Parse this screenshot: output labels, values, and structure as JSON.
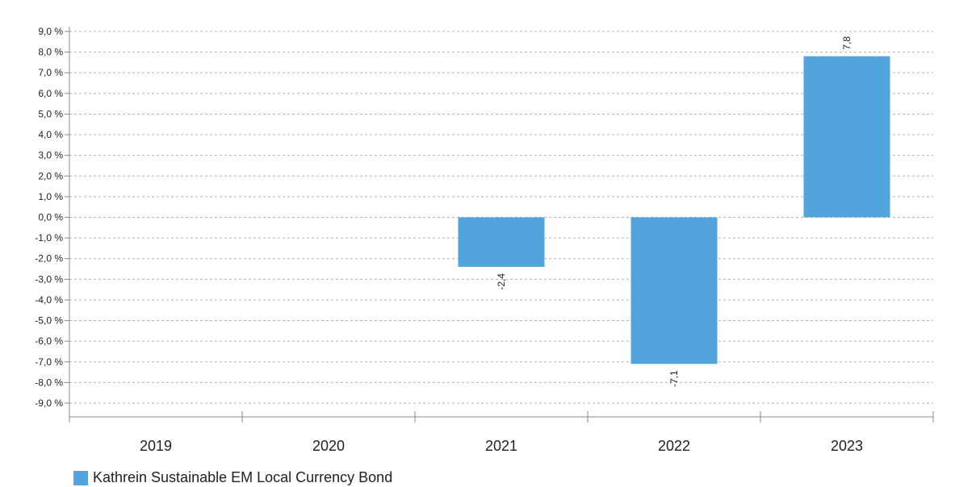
{
  "chart_data": {
    "type": "bar",
    "categories": [
      "2019",
      "2020",
      "2021",
      "2022",
      "2023"
    ],
    "series": [
      {
        "name": "Kathrein Sustainable EM Local Currency Bond",
        "values": [
          null,
          null,
          -2.4,
          -7.1,
          7.8
        ],
        "value_labels": [
          "",
          "",
          "-2,4",
          "-7,1",
          "7,8"
        ]
      }
    ],
    "yticks": [
      {
        "value": 9,
        "label": "9,0 %"
      },
      {
        "value": 8,
        "label": "8,0 %"
      },
      {
        "value": 7,
        "label": "7,0 %"
      },
      {
        "value": 6,
        "label": "6,0 %"
      },
      {
        "value": 5,
        "label": "5,0 %"
      },
      {
        "value": 4,
        "label": "4,0 %"
      },
      {
        "value": 3,
        "label": "3,0 %"
      },
      {
        "value": 2,
        "label": "2,0 %"
      },
      {
        "value": 1,
        "label": "1,0 %"
      },
      {
        "value": 0,
        "label": "0,0 %"
      },
      {
        "value": -1,
        "label": "-1,0 %"
      },
      {
        "value": -2,
        "label": "-2,0 %"
      },
      {
        "value": -3,
        "label": "-3,0 %"
      },
      {
        "value": -4,
        "label": "-4,0 %"
      },
      {
        "value": -5,
        "label": "-5,0 %"
      },
      {
        "value": -6,
        "label": "-6,0 %"
      },
      {
        "value": -7,
        "label": "-7,0 %"
      },
      {
        "value": -8,
        "label": "-8,0 %"
      },
      {
        "value": -9,
        "label": "-9,0 %"
      }
    ],
    "ylim": [
      -9,
      9
    ],
    "grid": true,
    "legend_position": "bottom-left",
    "bar_color": "#52a5dc"
  }
}
